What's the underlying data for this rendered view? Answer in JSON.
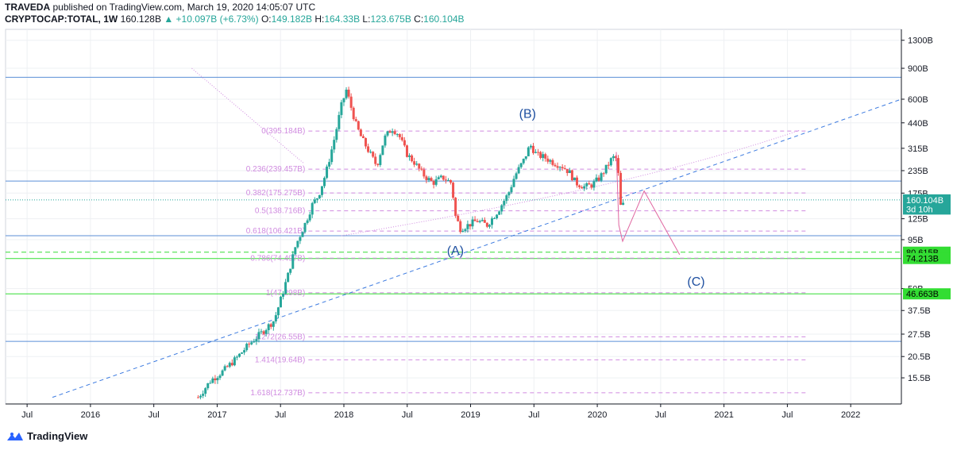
{
  "header": {
    "publisher": "TRAVEDA",
    "published_text": "published on TradingView.com, March 19, 2020 14:05:07 UTC",
    "symbol": "CRYPTOCAP:TOTAL, 1W",
    "last": "160.128B",
    "change": "▲ +10.097B (+6.73%)",
    "o_label": "O:",
    "o": "149.182B",
    "h_label": "H:",
    "h": "164.33B",
    "l_label": "L:",
    "l": "123.675B",
    "c_label": "C:",
    "c": "160.104B"
  },
  "footer": {
    "brand": "TradingView"
  },
  "colors": {
    "up": "#26a69a",
    "down": "#ef5350",
    "fib": "#d08be0",
    "hline": "#5b8fd6",
    "green": "#33dd33",
    "wave": "#1e4fa0",
    "trend": "#3d7be0"
  },
  "chart_data": {
    "type": "candlestick",
    "y_scale": "log",
    "ylim": [
      11,
      1500
    ],
    "y_ticks": [
      {
        "label": "1300B",
        "v": 1300
      },
      {
        "label": "900B",
        "v": 900
      },
      {
        "label": "600B",
        "v": 600
      },
      {
        "label": "440B",
        "v": 440
      },
      {
        "label": "315B",
        "v": 315
      },
      {
        "label": "235B",
        "v": 235
      },
      {
        "label": "175B",
        "v": 175
      },
      {
        "label": "125B",
        "v": 125
      },
      {
        "label": "95B",
        "v": 95
      },
      {
        "label": "50B",
        "v": 50
      },
      {
        "label": "37.5B",
        "v": 37.5
      },
      {
        "label": "27.5B",
        "v": 27.5
      },
      {
        "label": "20.5B",
        "v": 20.5
      },
      {
        "label": "15.5B",
        "v": 15.5
      }
    ],
    "x_ticks": [
      {
        "label": "Jul",
        "t": 2015.5
      },
      {
        "label": "2016",
        "t": 2016
      },
      {
        "label": "Jul",
        "t": 2016.5
      },
      {
        "label": "2017",
        "t": 2017
      },
      {
        "label": "Jul",
        "t": 2017.5
      },
      {
        "label": "2018",
        "t": 2018
      },
      {
        "label": "Jul",
        "t": 2018.5
      },
      {
        "label": "2019",
        "t": 2019
      },
      {
        "label": "Jul",
        "t": 2019.5
      },
      {
        "label": "2020",
        "t": 2020
      },
      {
        "label": "Jul",
        "t": 2020.5
      },
      {
        "label": "2021",
        "t": 2021
      },
      {
        "label": "Jul",
        "t": 2021.5
      },
      {
        "label": "2022",
        "t": 2022
      }
    ],
    "xlim": [
      2015.33,
      2022.4
    ],
    "price_tags": [
      {
        "label": "160.104B",
        "v": 160.1,
        "bg": "#26a69a",
        "fg": "#ffffff"
      },
      {
        "label": "3d 10h",
        "v": 142,
        "bg": "#26a69a",
        "fg": "#ffffff"
      },
      {
        "label": "80.615B",
        "v": 80.6,
        "bg": "#33dd33",
        "fg": "#000000"
      },
      {
        "label": "74.213B",
        "v": 74.2,
        "bg": "#33dd33",
        "fg": "#000000"
      },
      {
        "label": "46.663B",
        "v": 46.66,
        "bg": "#33dd33",
        "fg": "#000000"
      }
    ],
    "fib_levels": [
      {
        "label": "0(395.184B)",
        "v": 395.2
      },
      {
        "label": "0.236(239.457B)",
        "v": 239.5
      },
      {
        "label": "0.382(175.275B)",
        "v": 175.3
      },
      {
        "label": "0.5(138.716B)",
        "v": 138.7
      },
      {
        "label": "0.618(106.421B)",
        "v": 106.4
      },
      {
        "label": "0.786(74.497B)",
        "v": 74.5
      },
      {
        "label": "1(47.298B)",
        "v": 47.3
      },
      {
        "label": "1.272(26.55B)",
        "v": 26.55
      },
      {
        "label": "1.414(19.64B)",
        "v": 19.64
      },
      {
        "label": "1.618(12.737B)",
        "v": 12.74
      }
    ],
    "fib_range": [
      2017.72,
      2021.65
    ],
    "hlines": [
      {
        "v": 800,
        "color": "#5b8fd6"
      },
      {
        "v": 205,
        "color": "#5b8fd6"
      },
      {
        "v": 160.1,
        "color": "#26a69a",
        "dotted": true
      },
      {
        "v": 100,
        "color": "#5b8fd6"
      },
      {
        "v": 80.6,
        "color": "#33dd33",
        "dashed": true
      },
      {
        "v": 74.2,
        "color": "#33dd33"
      },
      {
        "v": 46.66,
        "color": "#33dd33"
      },
      {
        "v": 25,
        "color": "#5b8fd6"
      }
    ],
    "trendline": {
      "from": [
        2015.7,
        12
      ],
      "to": [
        2022.4,
        600
      ]
    },
    "projection": [
      [
        2020.15,
        300
      ],
      [
        2020.17,
        115
      ],
      [
        2020.2,
        93
      ],
      [
        2020.37,
        180
      ],
      [
        2020.65,
        78
      ]
    ],
    "wave_labels": [
      {
        "label": "(B)",
        "t": 2019.45,
        "v": 470
      },
      {
        "label": "(A)",
        "t": 2018.88,
        "v": 78
      },
      {
        "label": "(C)",
        "t": 2020.78,
        "v": 52
      }
    ],
    "anchors": [
      [
        2016.85,
        12
      ],
      [
        2016.95,
        15
      ],
      [
        2017.05,
        17
      ],
      [
        2017.15,
        20
      ],
      [
        2017.25,
        24
      ],
      [
        2017.35,
        28
      ],
      [
        2017.45,
        33
      ],
      [
        2017.5,
        43
      ],
      [
        2017.56,
        60
      ],
      [
        2017.62,
        88
      ],
      [
        2017.7,
        120
      ],
      [
        2017.75,
        150
      ],
      [
        2017.8,
        170
      ],
      [
        2017.86,
        230
      ],
      [
        2017.93,
        370
      ],
      [
        2017.98,
        550
      ],
      [
        2018.02,
        680
      ],
      [
        2018.06,
        530
      ],
      [
        2018.1,
        420
      ],
      [
        2018.14,
        360
      ],
      [
        2018.2,
        300
      ],
      [
        2018.26,
        250
      ],
      [
        2018.32,
        360
      ],
      [
        2018.38,
        410
      ],
      [
        2018.43,
        380
      ],
      [
        2018.5,
        290
      ],
      [
        2018.56,
        260
      ],
      [
        2018.62,
        225
      ],
      [
        2018.7,
        200
      ],
      [
        2018.78,
        215
      ],
      [
        2018.85,
        200
      ],
      [
        2018.88,
        130
      ],
      [
        2018.92,
        110
      ],
      [
        2018.98,
        115
      ],
      [
        2019.05,
        122
      ],
      [
        2019.13,
        115
      ],
      [
        2019.22,
        140
      ],
      [
        2019.3,
        175
      ],
      [
        2019.35,
        220
      ],
      [
        2019.42,
        270
      ],
      [
        2019.47,
        330
      ],
      [
        2019.52,
        290
      ],
      [
        2019.58,
        280
      ],
      [
        2019.66,
        260
      ],
      [
        2019.72,
        250
      ],
      [
        2019.78,
        230
      ],
      [
        2019.83,
        200
      ],
      [
        2019.9,
        190
      ],
      [
        2019.96,
        195
      ],
      [
        2020.02,
        215
      ],
      [
        2020.08,
        250
      ],
      [
        2020.12,
        280
      ],
      [
        2020.15,
        275
      ],
      [
        2020.17,
        210
      ],
      [
        2020.19,
        130
      ],
      [
        2020.21,
        160
      ]
    ]
  }
}
